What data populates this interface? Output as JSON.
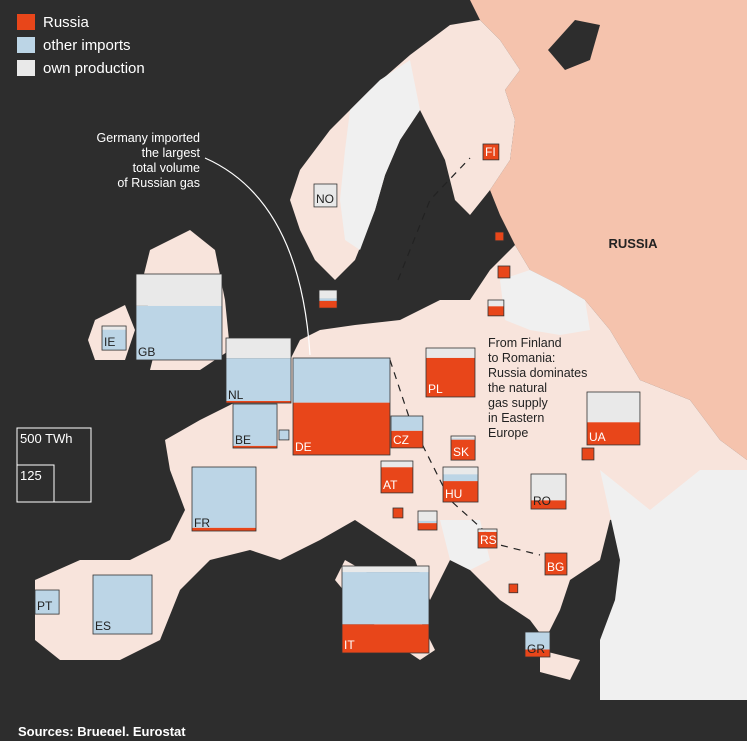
{
  "legend": {
    "items": [
      {
        "name": "Russia",
        "color": "#e8461a"
      },
      {
        "name": "other imports",
        "color": "#bcd5e6"
      },
      {
        "name": "own production",
        "color": "#e9e9e9"
      }
    ]
  },
  "size_legend": [
    {
      "value": 500,
      "label": "500 TWh"
    },
    125
  ],
  "annotations": [
    {
      "lines": [
        "Germany imported",
        "the largest",
        "total volume",
        "of Russian gas"
      ]
    },
    {
      "lines": [
        "From Finland",
        "to Romania:",
        "Russia dominates",
        "the natural",
        "gas supply",
        "in Eastern",
        "Europe"
      ]
    }
  ],
  "region_label": "RUSSIA",
  "source": "Sources: Bruegel, Eurostat",
  "countries": [
    {
      "label": "GB",
      "values": [
        0,
        425,
        250
      ]
    },
    {
      "label": "IE",
      "values": [
        0,
        45,
        8
      ]
    },
    {
      "label": "NO",
      "values": [
        0,
        0,
        48
      ]
    },
    {
      "label": "FI",
      "values": [
        23,
        0,
        0
      ]
    },
    {
      "label": null,
      "values": [
        7,
        0,
        0
      ]
    },
    {
      "label": null,
      "values": [
        13,
        0,
        0
      ]
    },
    {
      "label": null,
      "values": [
        14,
        0,
        9
      ]
    },
    {
      "label": null,
      "values": [
        12,
        4,
        14
      ]
    },
    {
      "label": "NL",
      "values": [
        12,
        254,
        120
      ]
    },
    {
      "label": "BE",
      "values": [
        9,
        168,
        0
      ]
    },
    {
      "label": null,
      "values": [
        0,
        9,
        0
      ]
    },
    {
      "label": "DE",
      "values": [
        464,
        395,
        0
      ]
    },
    {
      "label": "FR",
      "values": [
        19,
        355,
        0
      ]
    },
    {
      "label": "ES",
      "values": [
        0,
        318,
        0
      ]
    },
    {
      "label": "PT",
      "values": [
        0,
        53,
        0
      ]
    },
    {
      "label": "IT",
      "values": [
        228,
        415,
        48
      ]
    },
    {
      "label": "CZ",
      "values": [
        50,
        43,
        0
      ]
    },
    {
      "label": "PL",
      "values": [
        175,
        0,
        44
      ]
    },
    {
      "label": "SK",
      "values": [
        45,
        3,
        5
      ]
    },
    {
      "label": "AT",
      "values": [
        75,
        0,
        18
      ]
    },
    {
      "label": "HU",
      "values": [
        67,
        22,
        23
      ]
    },
    {
      "label": null,
      "values": [
        9,
        0,
        0
      ]
    },
    {
      "label": null,
      "values": [
        12,
        4,
        17
      ]
    },
    {
      "label": "RS",
      "values": [
        28,
        0,
        5
      ]
    },
    {
      "label": "RO",
      "values": [
        28,
        0,
        84
      ]
    },
    {
      "label": "BG",
      "values": [
        44,
        0,
        0
      ]
    },
    {
      "label": null,
      "values": [
        7,
        0,
        0
      ]
    },
    {
      "label": "UA",
      "values": [
        110,
        0,
        146
      ]
    },
    {
      "label": null,
      "values": [
        13,
        0,
        0
      ]
    },
    {
      "label": "GR",
      "values": [
        17,
        40,
        0
      ]
    }
  ]
}
